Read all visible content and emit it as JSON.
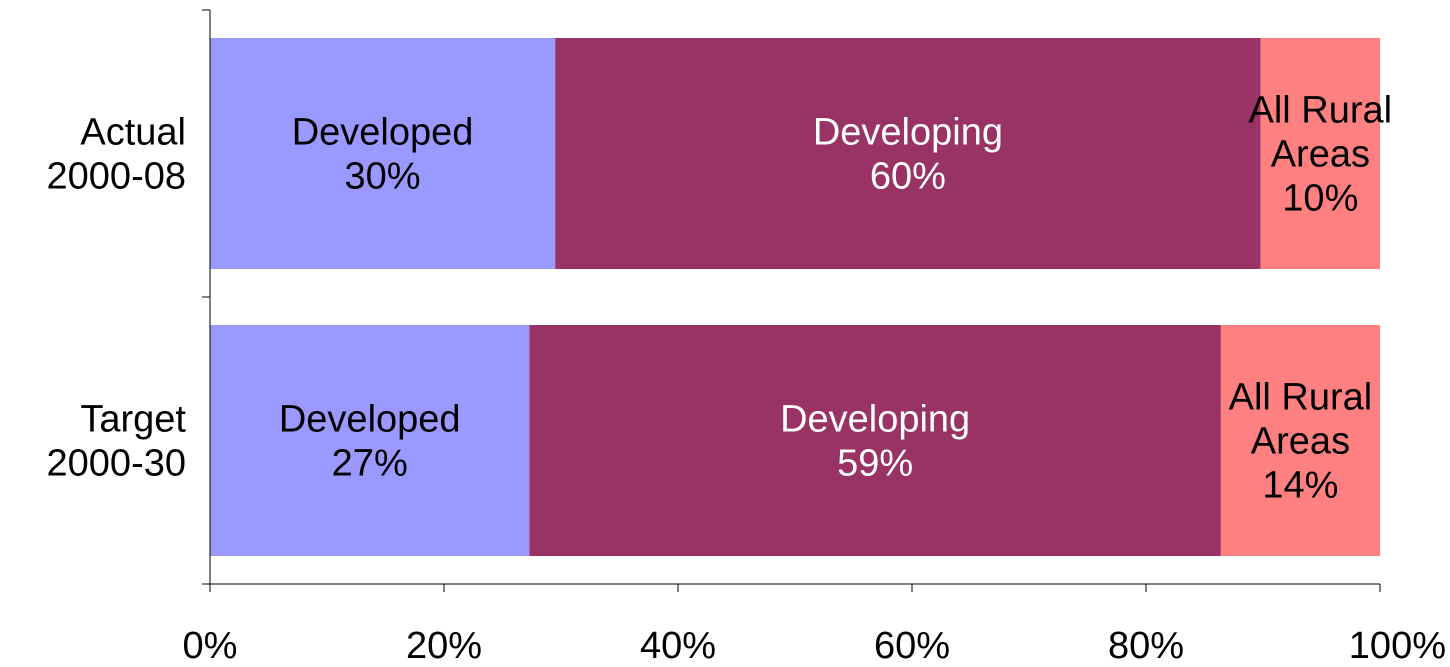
{
  "chart_data": {
    "type": "bar",
    "orientation": "horizontal",
    "stacked": true,
    "normalized": true,
    "title": "",
    "xlabel": "",
    "ylabel": "",
    "xlim": [
      0,
      100
    ],
    "x_ticks": [
      0,
      20,
      40,
      60,
      80,
      100
    ],
    "x_tick_labels": [
      "0%",
      "20%",
      "40%",
      "60%",
      "80%",
      "100%"
    ],
    "grid": false,
    "legend": "none",
    "categories": [
      {
        "lines": [
          "Actual",
          "2000-08"
        ]
      },
      {
        "lines": [
          "Target",
          "2000-30"
        ]
      }
    ],
    "series": [
      {
        "color": "#9999ff",
        "label_color": "#000000",
        "values": [
          29.5,
          27.3
        ],
        "segment_labels": [
          [
            "Developed",
            "30%"
          ],
          [
            "Developed",
            "27%"
          ]
        ]
      },
      {
        "color": "#993366",
        "label_color": "#ffffff",
        "values": [
          60.3,
          59.1
        ],
        "segment_labels": [
          [
            "Developing",
            "60%"
          ],
          [
            "Developing",
            "59%"
          ]
        ]
      },
      {
        "color": "#ff8080",
        "label_color": "#000000",
        "values": [
          10.2,
          13.6
        ],
        "segment_labels": [
          [
            "All Rural",
            "Areas",
            "10%"
          ],
          [
            "All Rural",
            "Areas",
            "14%"
          ]
        ]
      }
    ]
  }
}
